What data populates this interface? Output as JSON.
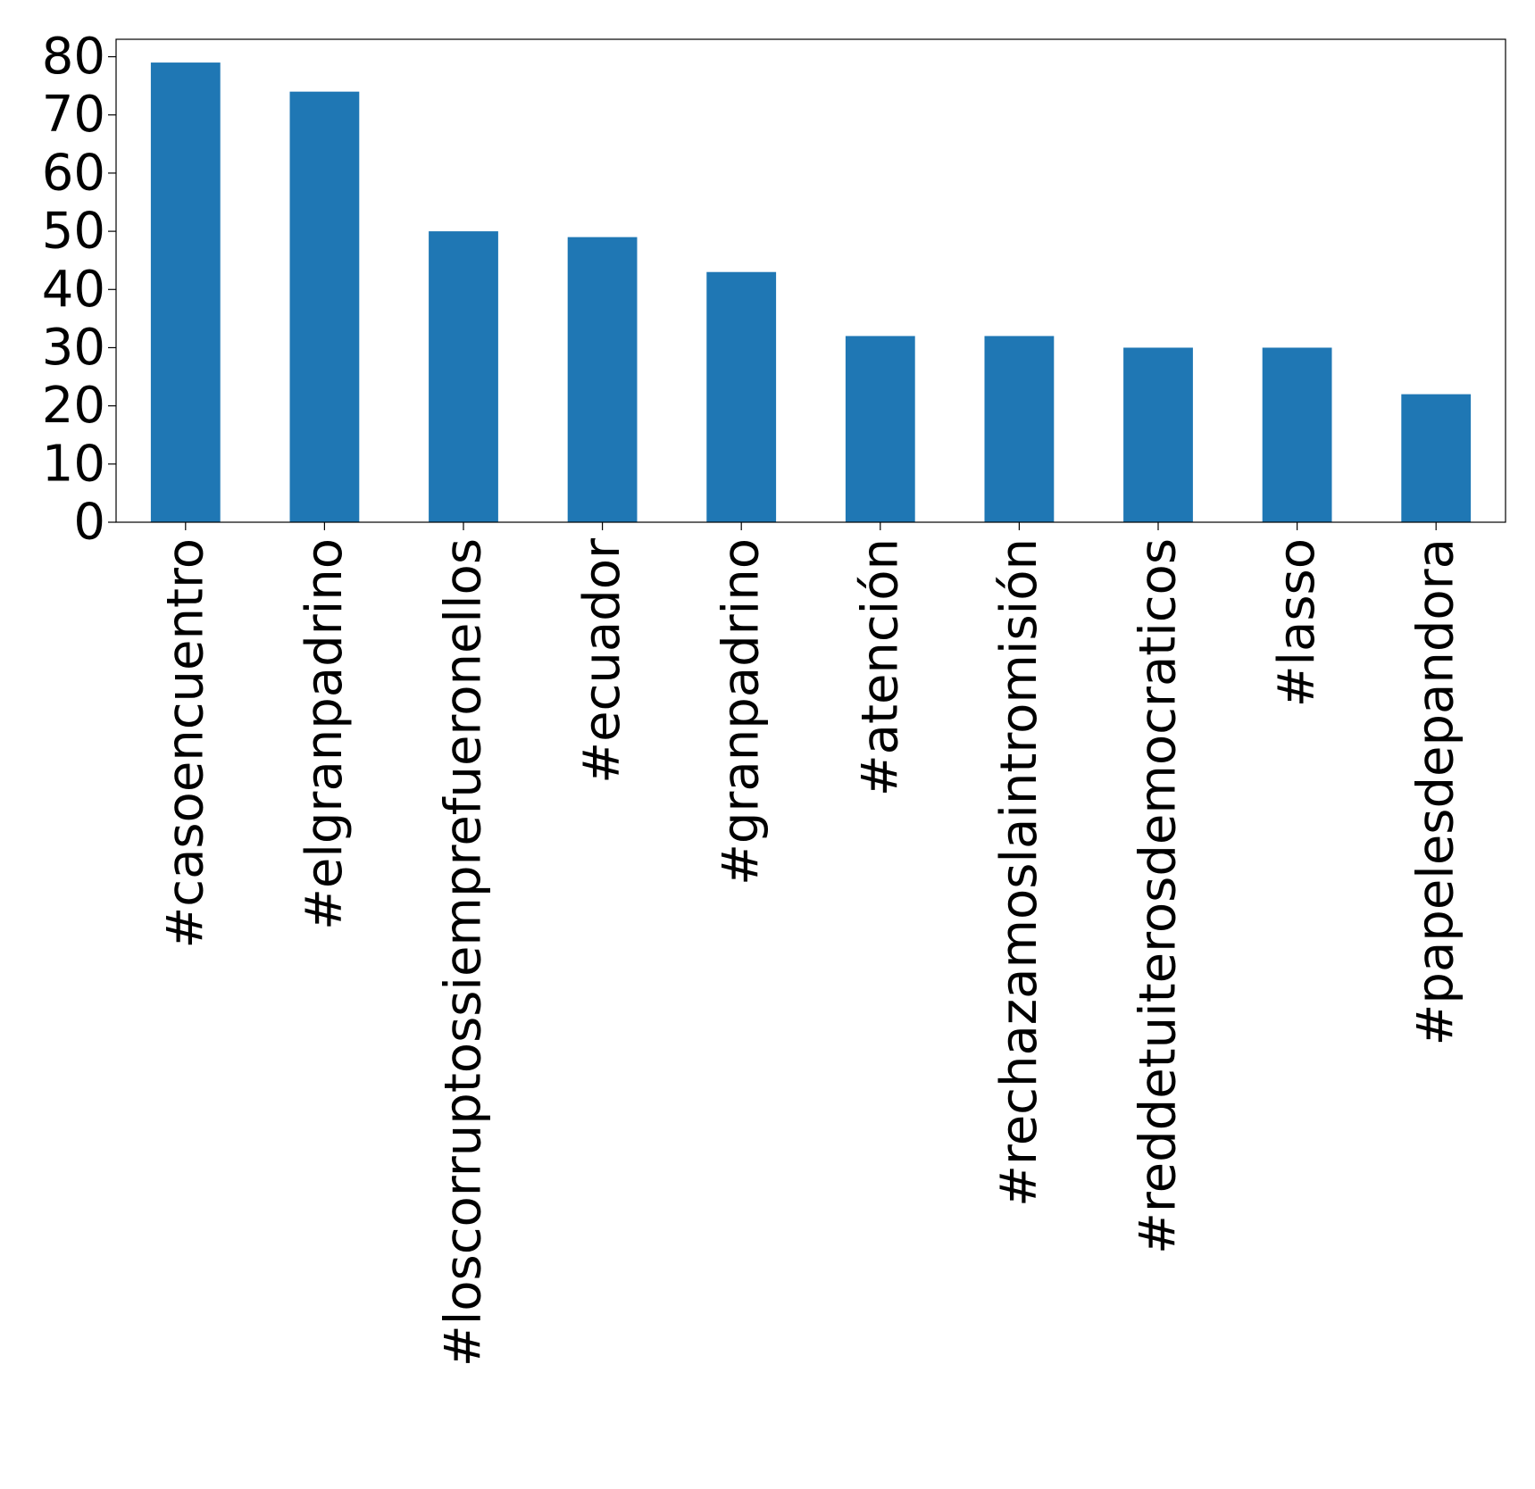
{
  "chart_data": {
    "type": "bar",
    "title": "",
    "xlabel": "",
    "ylabel": "",
    "categories": [
      "#casoencuentro",
      "#elgranpadrino",
      "#loscorruptossiemprefueronellos",
      "#ecuador",
      "#granpadrino",
      "#atención",
      "#rechazamoslaintromisión",
      "#reddetuiterosdemocraticos",
      "#lasso",
      "#papelesdepandora"
    ],
    "values": [
      79,
      74,
      50,
      49,
      43,
      32,
      32,
      30,
      30,
      22
    ],
    "ylim": [
      0,
      83
    ],
    "yticks": [
      0,
      10,
      20,
      30,
      40,
      50,
      60,
      70,
      80
    ],
    "bar_color": "#1f77b4",
    "grid": false,
    "legend": "none"
  }
}
